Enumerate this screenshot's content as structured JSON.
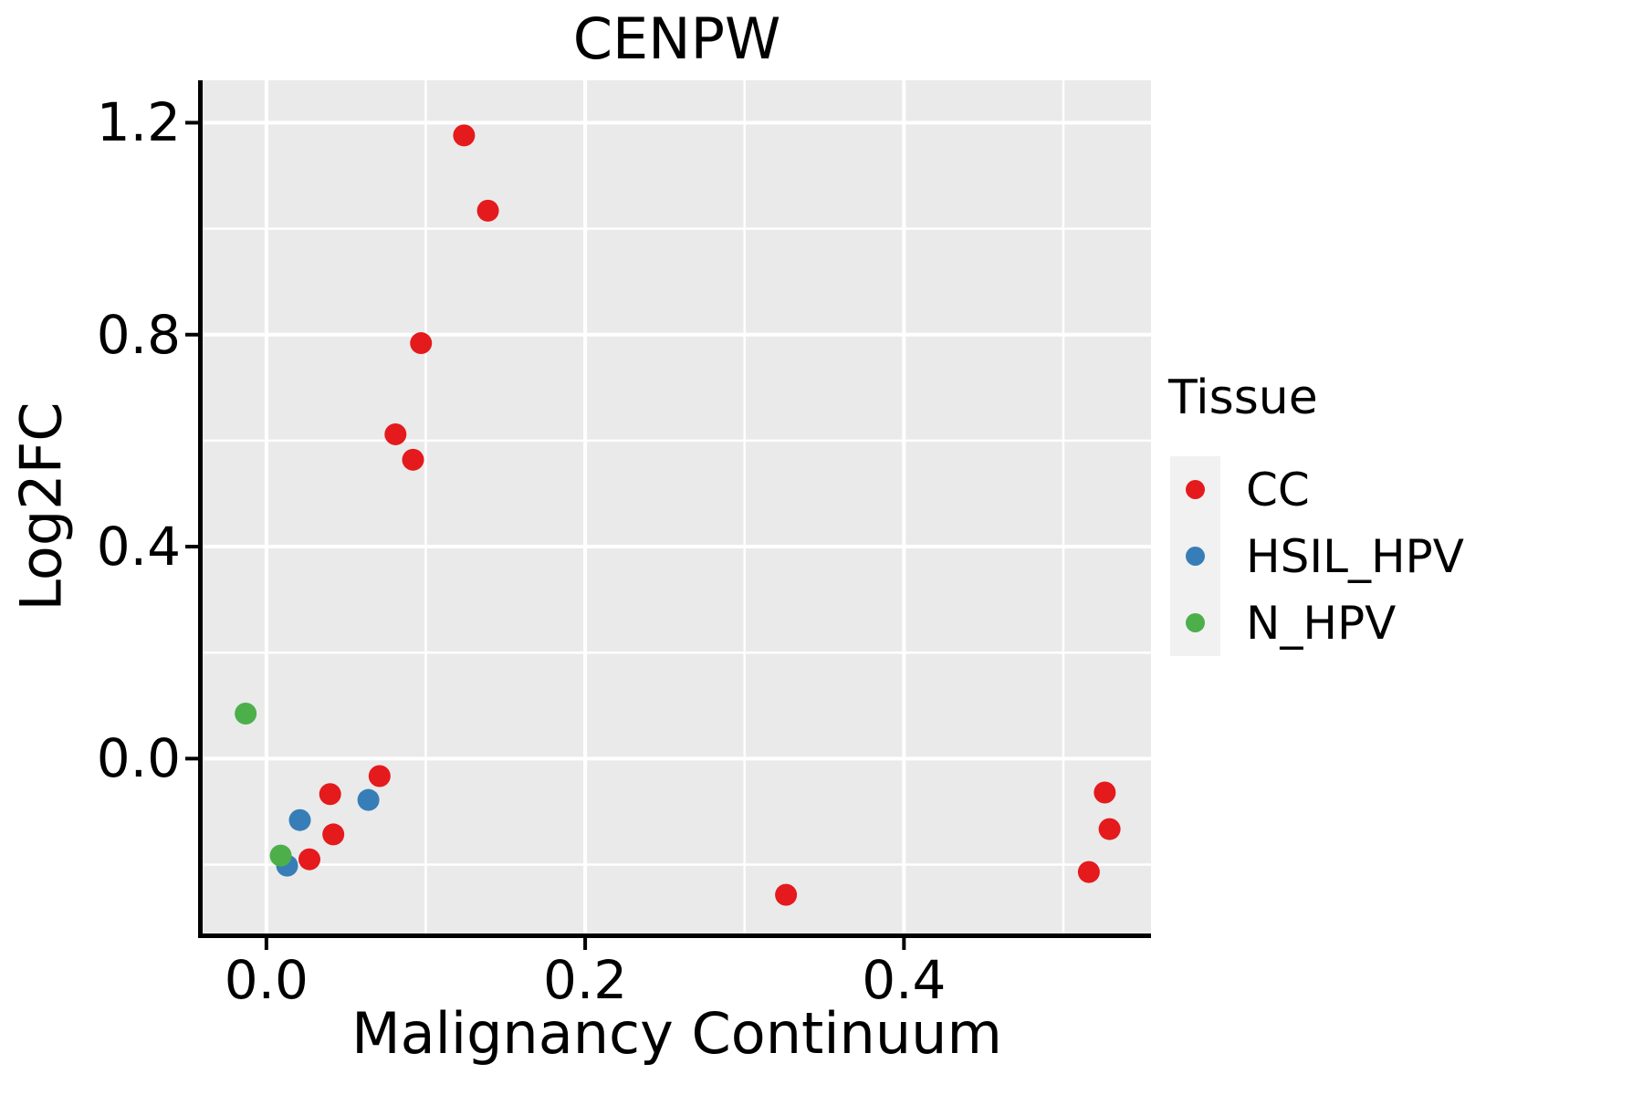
{
  "title": "CENPW",
  "axes": {
    "x": {
      "label": "Malignancy Continuum",
      "ticks": [
        {
          "v": 0.0,
          "label": "0.0"
        },
        {
          "v": 0.2,
          "label": "0.2"
        },
        {
          "v": 0.4,
          "label": "0.4"
        }
      ]
    },
    "y": {
      "label": "Log2FC",
      "ticks": [
        {
          "v": 0.0,
          "label": "0.0"
        },
        {
          "v": 0.4,
          "label": "0.4"
        },
        {
          "v": 0.8,
          "label": "0.8"
        },
        {
          "v": 1.2,
          "label": "1.2"
        }
      ]
    }
  },
  "legend": {
    "title": "Tissue",
    "entries": [
      {
        "label": "CC",
        "color": "#E41A1C"
      },
      {
        "label": "HSIL_HPV",
        "color": "#377EB8"
      },
      {
        "label": "N_HPV",
        "color": "#4DAF4A"
      }
    ]
  },
  "colors": {
    "panel_background": "#EAEAEA",
    "gridline": "#FFFFFF",
    "legend_key_background": "#F1F1F1",
    "spine": "#000000",
    "text": "#000000"
  },
  "chart_data": {
    "type": "scatter",
    "title": "CENPW",
    "xlabel": "Malignancy Continuum",
    "ylabel": "Log2FC",
    "xlim": [
      -0.04,
      0.555
    ],
    "ylim": [
      -0.33,
      1.28
    ],
    "x_major_ticks": [
      0.0,
      0.2,
      0.4
    ],
    "y_major_ticks": [
      0.0,
      0.4,
      0.8,
      1.2
    ],
    "x_minor_gridlines": [
      0.1,
      0.3,
      0.5
    ],
    "y_minor_gridlines": [
      -0.2,
      0.2,
      0.6,
      1.0
    ],
    "grid": true,
    "legend_position": "right",
    "legend_title": "Tissue",
    "point_radius_px": 12,
    "series": [
      {
        "name": "CC",
        "color": "#E41A1C",
        "points": [
          [
            0.124,
            1.176
          ],
          [
            0.139,
            1.034
          ],
          [
            0.097,
            0.784
          ],
          [
            0.081,
            0.612
          ],
          [
            0.092,
            0.564
          ],
          [
            0.071,
            -0.033
          ],
          [
            0.04,
            -0.067
          ],
          [
            0.042,
            -0.143
          ],
          [
            0.027,
            -0.19
          ],
          [
            0.326,
            -0.257
          ],
          [
            0.526,
            -0.064
          ],
          [
            0.529,
            -0.133
          ],
          [
            0.516,
            -0.214
          ]
        ]
      },
      {
        "name": "HSIL_HPV",
        "color": "#377EB8",
        "points": [
          [
            0.064,
            -0.078
          ],
          [
            0.021,
            -0.116
          ],
          [
            0.013,
            -0.202
          ]
        ]
      },
      {
        "name": "N_HPV",
        "color": "#4DAF4A",
        "points": [
          [
            -0.013,
            0.085
          ],
          [
            0.009,
            -0.183
          ]
        ]
      }
    ]
  }
}
